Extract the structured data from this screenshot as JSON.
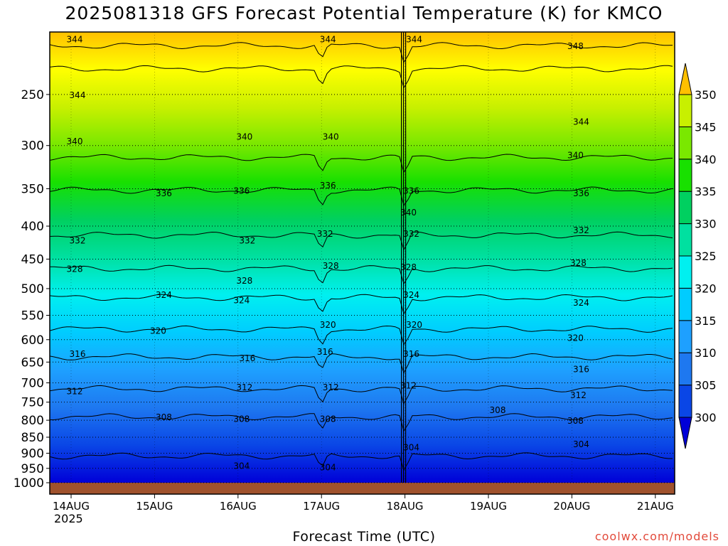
{
  "chart_data": {
    "type": "heatmap",
    "title": "2025081318 GFS Forecast Potential Temperature (K) for KMCO",
    "xlabel": "Forecast Time (UTC)",
    "ylabel": "",
    "x_ticks": [
      "14AUG",
      "15AUG",
      "16AUG",
      "17AUG",
      "18AUG",
      "19AUG",
      "20AUG",
      "21AUG"
    ],
    "x_year": "2025",
    "y_ticks": [
      "250",
      "300",
      "350",
      "400",
      "450",
      "500",
      "550",
      "600",
      "650",
      "700",
      "750",
      "800",
      "850",
      "900",
      "950",
      "1000"
    ],
    "y_range": [
      1000,
      200
    ],
    "colorbar": {
      "ticks": [
        "300",
        "305",
        "310",
        "315",
        "320",
        "325",
        "330",
        "335",
        "340",
        "345",
        "350"
      ],
      "colors": [
        "#0000d8",
        "#0a46e6",
        "#1e78f0",
        "#1ea0ff",
        "#00ccff",
        "#00f0f0",
        "#00e0a0",
        "#00d060",
        "#18e000",
        "#7ae800",
        "#c8f000",
        "#ffff00",
        "#ffc000"
      ]
    },
    "contour_labels": [
      {
        "p": 205,
        "time": "14AUG",
        "value": "344"
      },
      {
        "p": 205,
        "time": "17AUG",
        "value": "344"
      },
      {
        "p": 205,
        "time": "18AUG",
        "value": "344"
      },
      {
        "p": 210,
        "time": "20AUG",
        "value": "348"
      },
      {
        "p": 250,
        "time": "14AUG",
        "value": "344"
      },
      {
        "p": 275,
        "time": "20AUG",
        "value": "344"
      },
      {
        "p": 295,
        "time": "14AUG",
        "value": "340"
      },
      {
        "p": 290,
        "time": "16AUG",
        "value": "340"
      },
      {
        "p": 290,
        "time": "17AUG",
        "value": "340"
      },
      {
        "p": 310,
        "time": "20AUG",
        "value": "340"
      },
      {
        "p": 345,
        "time": "17AUG",
        "value": "336"
      },
      {
        "p": 355,
        "time": "15AUG",
        "value": "336"
      },
      {
        "p": 352,
        "time": "16AUG",
        "value": "336"
      },
      {
        "p": 352,
        "time": "18AUG",
        "value": "336"
      },
      {
        "p": 355,
        "time": "20AUG",
        "value": "336"
      },
      {
        "p": 380,
        "time": "18AUG",
        "value": "340"
      },
      {
        "p": 420,
        "time": "14AUG",
        "value": "332"
      },
      {
        "p": 420,
        "time": "16AUG",
        "value": "332"
      },
      {
        "p": 410,
        "time": "17AUG",
        "value": "332"
      },
      {
        "p": 410,
        "time": "18AUG",
        "value": "332"
      },
      {
        "p": 405,
        "time": "20AUG",
        "value": "332"
      },
      {
        "p": 465,
        "time": "14AUG",
        "value": "328"
      },
      {
        "p": 485,
        "time": "16AUG",
        "value": "328"
      },
      {
        "p": 460,
        "time": "17AUG",
        "value": "328"
      },
      {
        "p": 462,
        "time": "18AUG",
        "value": "328"
      },
      {
        "p": 455,
        "time": "20AUG",
        "value": "328"
      },
      {
        "p": 510,
        "time": "15AUG",
        "value": "324"
      },
      {
        "p": 520,
        "time": "16AUG",
        "value": "324"
      },
      {
        "p": 510,
        "time": "18AUG",
        "value": "324"
      },
      {
        "p": 525,
        "time": "20AUG",
        "value": "324"
      },
      {
        "p": 580,
        "time": "15AUG",
        "value": "320"
      },
      {
        "p": 568,
        "time": "17AUG",
        "value": "320"
      },
      {
        "p": 568,
        "time": "18AUG",
        "value": "320"
      },
      {
        "p": 595,
        "time": "20AUG",
        "value": "320"
      },
      {
        "p": 630,
        "time": "14AUG",
        "value": "316"
      },
      {
        "p": 640,
        "time": "16AUG",
        "value": "316"
      },
      {
        "p": 625,
        "time": "17AUG",
        "value": "316"
      },
      {
        "p": 630,
        "time": "18AUG",
        "value": "316"
      },
      {
        "p": 665,
        "time": "20AUG",
        "value": "316"
      },
      {
        "p": 720,
        "time": "14AUG",
        "value": "312"
      },
      {
        "p": 710,
        "time": "16AUG",
        "value": "312"
      },
      {
        "p": 710,
        "time": "17AUG",
        "value": "312"
      },
      {
        "p": 705,
        "time": "18AUG",
        "value": "312"
      },
      {
        "p": 730,
        "time": "20AUG",
        "value": "312"
      },
      {
        "p": 790,
        "time": "15AUG",
        "value": "308"
      },
      {
        "p": 795,
        "time": "16AUG",
        "value": "308"
      },
      {
        "p": 795,
        "time": "17AUG",
        "value": "308"
      },
      {
        "p": 770,
        "time": "19AUG",
        "value": "308"
      },
      {
        "p": 800,
        "time": "20AUG",
        "value": "308"
      },
      {
        "p": 880,
        "time": "18AUG",
        "value": "304"
      },
      {
        "p": 870,
        "time": "20AUG",
        "value": "304"
      },
      {
        "p": 940,
        "time": "16AUG",
        "value": "304"
      },
      {
        "p": 945,
        "time": "17AUG",
        "value": "304"
      }
    ]
  },
  "credit": "coolwx.com/models"
}
